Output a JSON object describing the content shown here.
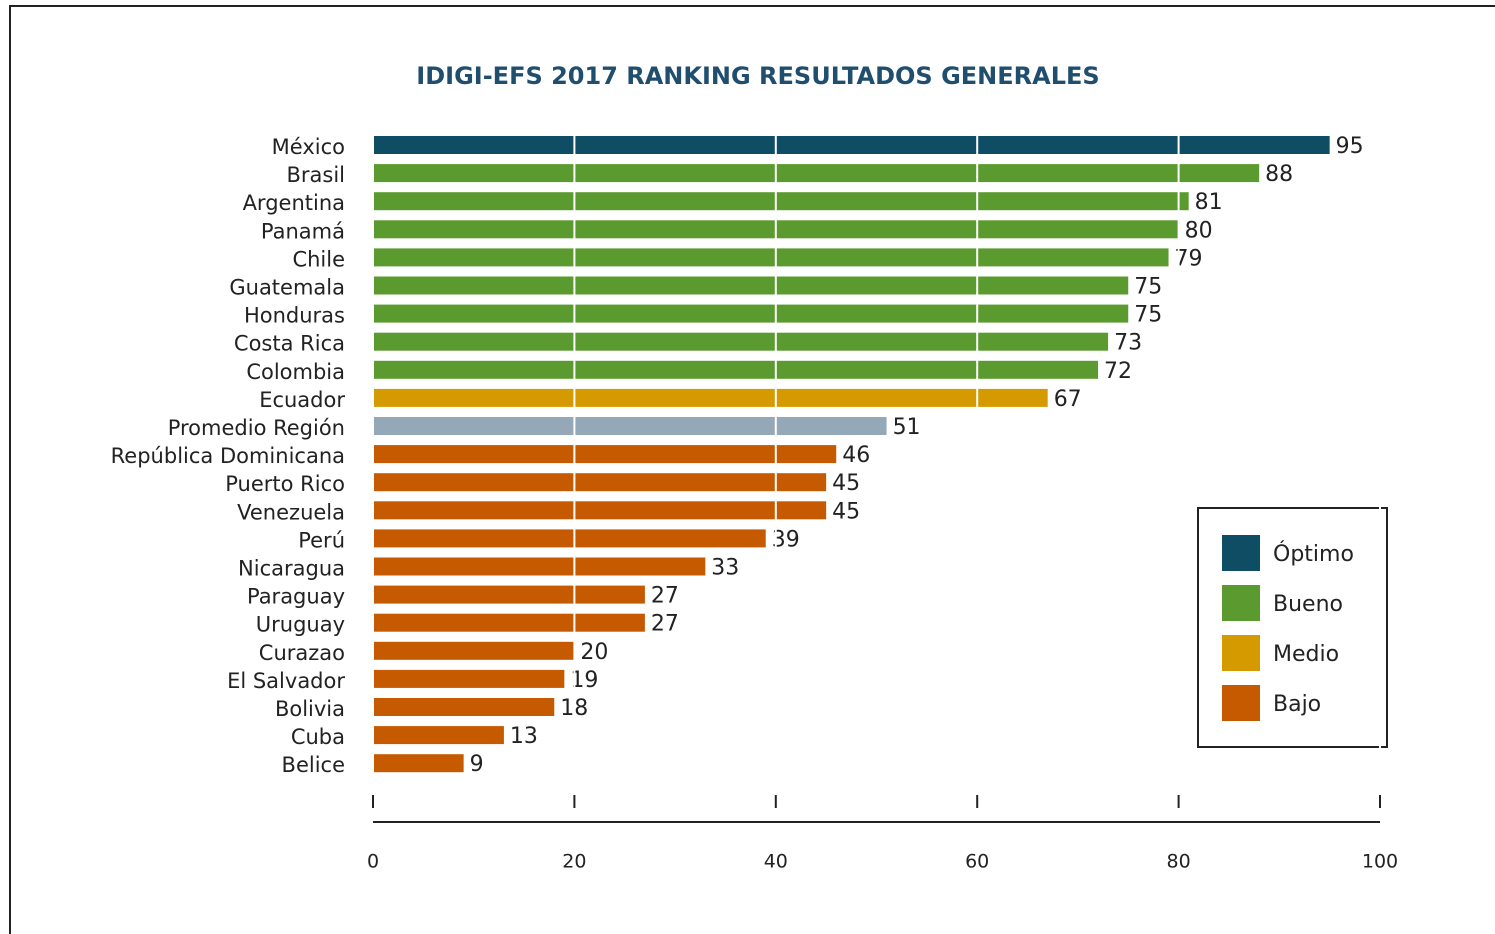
{
  "chart_data": {
    "type": "bar",
    "orientation": "horizontal",
    "title": "IDIGI-EFS 2017 RANKING RESULTADOS GENERALES",
    "categories": [
      "México",
      "Brasil",
      "Argentina",
      "Panamá",
      "Chile",
      "Guatemala",
      "Honduras",
      "Costa Rica",
      "Colombia",
      "Ecuador",
      "Promedio Región",
      "República Dominicana",
      "Puerto Rico",
      "Venezuela",
      "Perú",
      "Nicaragua",
      "Paraguay",
      "Uruguay",
      "Curazao",
      "El Salvador",
      "Bolivia",
      "Cuba",
      "Belice"
    ],
    "values": [
      95,
      88,
      81,
      80,
      79,
      75,
      75,
      73,
      72,
      67,
      51,
      46,
      45,
      45,
      39,
      33,
      27,
      27,
      20,
      19,
      18,
      13,
      9
    ],
    "colors": [
      "#0e4d64",
      "#5a9a2e",
      "#5a9a2e",
      "#5a9a2e",
      "#5a9a2e",
      "#5a9a2e",
      "#5a9a2e",
      "#5a9a2e",
      "#5a9a2e",
      "#d49a00",
      "#94a8b8",
      "#c55a00",
      "#c55a00",
      "#c55a00",
      "#c55a00",
      "#c55a00",
      "#c55a00",
      "#c55a00",
      "#c55a00",
      "#c55a00",
      "#c55a00",
      "#c55a00",
      "#c55a00"
    ],
    "legend": [
      {
        "name": "Óptimo",
        "color": "#0e4d64"
      },
      {
        "name": "Bueno",
        "color": "#5a9a2e"
      },
      {
        "name": "Medio",
        "color": "#d49a00"
      },
      {
        "name": "Bajo",
        "color": "#c55a00"
      }
    ],
    "legend_position": "lower right",
    "xlim": [
      0,
      100
    ],
    "xticks": [
      0,
      20,
      40,
      60,
      80,
      100
    ],
    "grid": true
  }
}
